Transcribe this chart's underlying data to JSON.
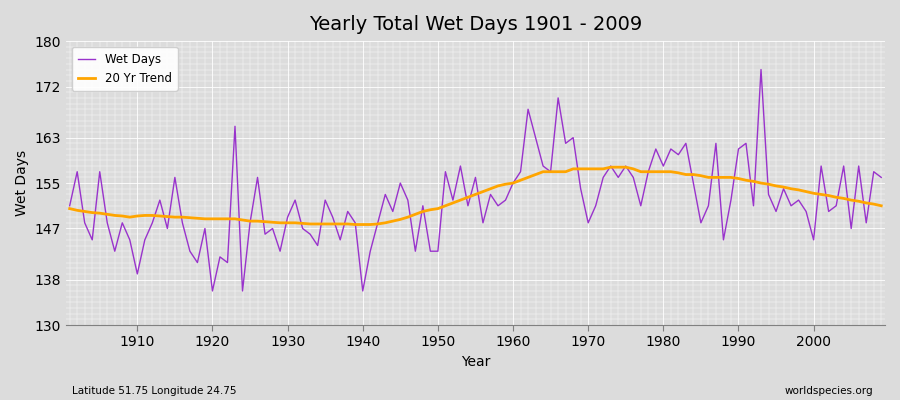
{
  "title": "Yearly Total Wet Days 1901 - 2009",
  "xlabel": "Year",
  "ylabel": "Wet Days",
  "footnote_left": "Latitude 51.75 Longitude 24.75",
  "footnote_right": "worldspecies.org",
  "legend_wet": "Wet Days",
  "legend_trend": "20 Yr Trend",
  "wet_color": "#9933CC",
  "trend_color": "#FFA500",
  "background_color": "#DCDCDC",
  "plot_bg_color": "#DCDCDC",
  "ylim": [
    130,
    180
  ],
  "yticks": [
    130,
    138,
    147,
    155,
    163,
    172,
    180
  ],
  "years": [
    1901,
    1902,
    1903,
    1904,
    1905,
    1906,
    1907,
    1908,
    1909,
    1910,
    1911,
    1912,
    1913,
    1914,
    1915,
    1916,
    1917,
    1918,
    1919,
    1920,
    1921,
    1922,
    1923,
    1924,
    1925,
    1926,
    1927,
    1928,
    1929,
    1930,
    1931,
    1932,
    1933,
    1934,
    1935,
    1936,
    1937,
    1938,
    1939,
    1940,
    1941,
    1942,
    1943,
    1944,
    1945,
    1946,
    1947,
    1948,
    1949,
    1950,
    1951,
    1952,
    1953,
    1954,
    1955,
    1956,
    1957,
    1958,
    1959,
    1960,
    1961,
    1962,
    1963,
    1964,
    1965,
    1966,
    1967,
    1968,
    1969,
    1970,
    1971,
    1972,
    1973,
    1974,
    1975,
    1976,
    1977,
    1978,
    1979,
    1980,
    1981,
    1982,
    1983,
    1984,
    1985,
    1986,
    1987,
    1988,
    1989,
    1990,
    1991,
    1992,
    1993,
    1994,
    1995,
    1996,
    1997,
    1998,
    1999,
    2000,
    2001,
    2002,
    2003,
    2004,
    2005,
    2006,
    2007,
    2008,
    2009
  ],
  "wet_days": [
    151,
    157,
    148,
    145,
    157,
    148,
    143,
    148,
    145,
    139,
    145,
    148,
    152,
    147,
    156,
    148,
    143,
    141,
    147,
    136,
    142,
    141,
    165,
    136,
    148,
    156,
    146,
    147,
    143,
    149,
    152,
    147,
    146,
    144,
    152,
    149,
    145,
    150,
    148,
    136,
    143,
    148,
    153,
    150,
    155,
    152,
    143,
    151,
    143,
    143,
    157,
    152,
    158,
    151,
    156,
    148,
    153,
    151,
    152,
    155,
    157,
    168,
    163,
    158,
    157,
    170,
    162,
    163,
    154,
    148,
    151,
    156,
    158,
    156,
    158,
    156,
    151,
    157,
    161,
    158,
    161,
    160,
    162,
    155,
    148,
    151,
    162,
    145,
    152,
    161,
    162,
    151,
    175,
    153,
    150,
    154,
    151,
    152,
    150,
    145,
    158,
    150,
    151,
    158,
    147,
    158,
    148,
    157,
    156
  ],
  "trend_days": [
    150.5,
    150.2,
    150.0,
    149.8,
    149.7,
    149.5,
    149.3,
    149.2,
    149.0,
    149.2,
    149.3,
    149.3,
    149.2,
    149.1,
    149.0,
    149.0,
    148.9,
    148.8,
    148.7,
    148.7,
    148.7,
    148.7,
    148.7,
    148.5,
    148.3,
    148.3,
    148.2,
    148.1,
    148.0,
    148.0,
    148.0,
    147.9,
    147.8,
    147.8,
    147.8,
    147.8,
    147.8,
    147.8,
    147.7,
    147.7,
    147.7,
    147.8,
    148.0,
    148.3,
    148.6,
    149.0,
    149.5,
    150.0,
    150.3,
    150.5,
    151.0,
    151.5,
    152.0,
    152.5,
    153.0,
    153.5,
    154.0,
    154.5,
    154.8,
    155.0,
    155.5,
    156.0,
    156.5,
    157.0,
    157.0,
    157.0,
    157.0,
    157.5,
    157.5,
    157.5,
    157.5,
    157.5,
    157.8,
    157.8,
    157.8,
    157.5,
    157.0,
    157.0,
    157.0,
    157.0,
    157.0,
    156.8,
    156.5,
    156.5,
    156.3,
    156.0,
    156.0,
    156.0,
    156.0,
    155.8,
    155.5,
    155.3,
    155.0,
    154.8,
    154.5,
    154.3,
    154.0,
    153.8,
    153.5,
    153.2,
    153.0,
    152.8,
    152.5,
    152.3,
    152.0,
    151.8,
    151.5,
    151.3,
    151.0
  ]
}
